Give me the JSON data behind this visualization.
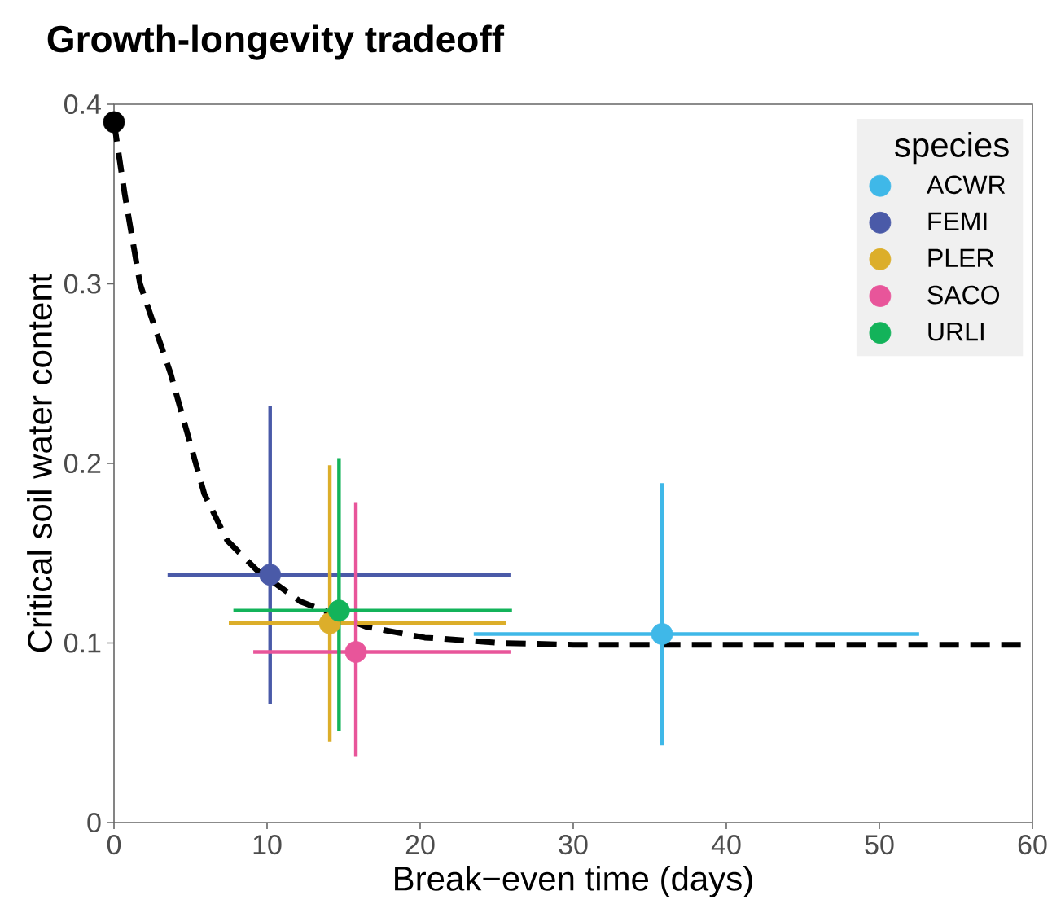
{
  "chart_data": {
    "type": "scatter",
    "title": "Growth-longevity tradeoff",
    "xlabel": "Break−even time (days)",
    "ylabel": "Critical soil water content",
    "legend_title": "species",
    "legend": "top right",
    "marker": "circle",
    "xlim": [
      0,
      60
    ],
    "ylim": [
      0,
      0.4
    ],
    "xticks": [
      0,
      10,
      20,
      30,
      40,
      50,
      60
    ],
    "yticks": [
      0,
      0.1,
      0.2,
      0.3,
      0.4
    ],
    "series": [
      {
        "type": "line",
        "color": "#000000",
        "line_style": "dashed",
        "marker": "none",
        "x": [
          0,
          0.7,
          1.7,
          3.7,
          5.9,
          7.4,
          9.4,
          12.2,
          16.5,
          20.3,
          25.3,
          30,
          40,
          60
        ],
        "values": [
          0.39,
          0.35,
          0.3,
          0.25,
          0.183,
          0.157,
          0.14,
          0.123,
          0.109,
          0.103,
          0.1,
          0.099,
          0.099,
          0.099
        ]
      },
      {
        "type": "scatter",
        "color": "#000000",
        "x": [
          0
        ],
        "values": [
          0.39
        ]
      },
      {
        "name": "ACWR",
        "color": "#3fb8e8",
        "x": [
          35.8
        ],
        "values": [
          0.105
        ],
        "errors": [
          [
            0.043,
            0.189
          ]
        ],
        "xerrors": [
          [
            23.5,
            52.6
          ]
        ]
      },
      {
        "name": "FEMI",
        "color": "#4a5aa8",
        "x": [
          10.2
        ],
        "values": [
          0.138
        ],
        "errors": [
          [
            0.066,
            0.232
          ]
        ],
        "xerrors": [
          [
            3.5,
            25.9
          ]
        ]
      },
      {
        "name": "PLER",
        "color": "#dcae2a",
        "x": [
          14.1
        ],
        "values": [
          0.111
        ],
        "errors": [
          [
            0.045,
            0.199
          ]
        ],
        "xerrors": [
          [
            7.5,
            25.6
          ]
        ]
      },
      {
        "name": "SACO",
        "color": "#e8559a",
        "x": [
          15.8
        ],
        "values": [
          0.095
        ],
        "errors": [
          [
            0.037,
            0.178
          ]
        ],
        "xerrors": [
          [
            9.1,
            25.9
          ]
        ]
      },
      {
        "name": "URLI",
        "color": "#13b35a",
        "x": [
          14.7
        ],
        "values": [
          0.118
        ],
        "errors": [
          [
            0.051,
            0.203
          ]
        ],
        "xerrors": [
          [
            7.8,
            26.0
          ]
        ]
      }
    ]
  }
}
